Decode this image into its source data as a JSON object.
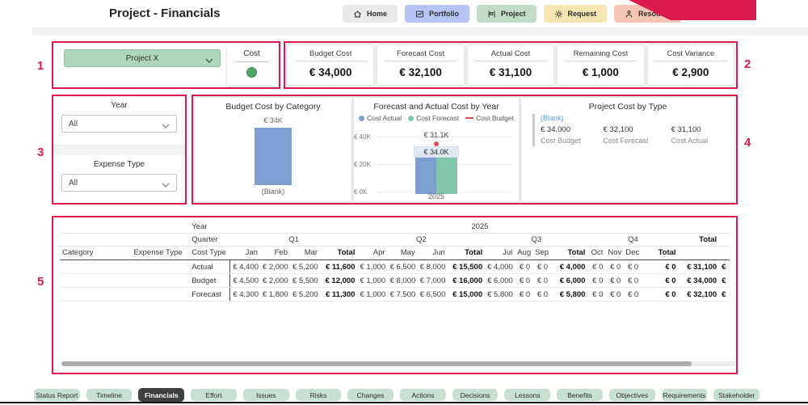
{
  "header": {
    "title": "Project - Financials",
    "nav": [
      {
        "label": "Home",
        "icon": "home-icon",
        "bg": "#e9e9e9"
      },
      {
        "label": "Portfolio",
        "icon": "portfolio-icon",
        "bg": "#b5c4f4"
      },
      {
        "label": "Project",
        "icon": "project-icon",
        "bg": "#c2dcca"
      },
      {
        "label": "Request",
        "icon": "request-icon",
        "bg": "#f6e5b2"
      },
      {
        "label": "Resource",
        "icon": "resource-icon",
        "bg": "#f6c6b4"
      }
    ],
    "ribbon_color": "#d81a4e"
  },
  "annotations": [
    "1",
    "2",
    "3",
    "4",
    "5"
  ],
  "filters": {
    "project": {
      "value": "Project X"
    },
    "cost": {
      "label": "Cost",
      "state": "on"
    },
    "year": {
      "label": "Year",
      "value": "All"
    },
    "expense": {
      "label": "Expense Type",
      "value": "All"
    }
  },
  "kpis": [
    {
      "label": "Budget Cost",
      "value": "€ 34,000"
    },
    {
      "label": "Forecast Cost",
      "value": "€ 32,100"
    },
    {
      "label": "Actual Cost",
      "value": "€ 31,100"
    },
    {
      "label": "Remaining Cost",
      "value": "€ 1,000"
    },
    {
      "label": "Cost Variance",
      "value": "€ 2,900"
    }
  ],
  "chart_data": [
    {
      "type": "bar",
      "title": "Budget Cost by Category",
      "categories": [
        "(Blank)"
      ],
      "values": [
        34000
      ],
      "data_label": "€ 34K",
      "bar_color": "#7d9fd2"
    },
    {
      "type": "bar",
      "title": "Forecast and Actual Cost by Year",
      "x": [
        "2025"
      ],
      "series": [
        {
          "name": "Cost Actual",
          "values": [
            31100
          ],
          "color": "#7d9fd2",
          "marker": "dot"
        },
        {
          "name": "Cost Forecast",
          "values": [
            32100
          ],
          "color": "#82c7ac",
          "marker": "dot"
        },
        {
          "name": "Cost Budget",
          "values": [
            34000
          ],
          "color": "#e05252",
          "marker": "line"
        }
      ],
      "ylim": [
        0,
        40000
      ],
      "yticks": [
        "€ 0K",
        "€ 20K",
        "€ 40K"
      ],
      "data_labels": {
        "actual": "€ 31.1K",
        "budget": "€ 34.0K"
      },
      "grid": "dotted",
      "legend_position": "top"
    },
    {
      "type": "table",
      "title": "Project Cost by Type",
      "group": "(Blank)",
      "items": [
        {
          "value": "€ 34,000",
          "label": "Cost Budget"
        },
        {
          "value": "€ 32,100",
          "label": "Cost Forecast"
        },
        {
          "value": "€ 31,100",
          "label": "Cost Actual"
        }
      ]
    }
  ],
  "table": {
    "year_label": "Year",
    "year_value": "2025",
    "quarter_label": "Quarter",
    "quarters": [
      "Q1",
      "Q2",
      "Q3",
      "Q4"
    ],
    "grand_total_label": "Total",
    "headers": [
      "Category",
      "Expense Type",
      "Cost Type"
    ],
    "month_cols": [
      "Jan",
      "Feb",
      "Mar",
      "Total",
      "Apr",
      "May",
      "Jun",
      "Total",
      "Jul",
      "Aug",
      "Sep",
      "Total",
      "Oct",
      "Nov",
      "Dec",
      "Total"
    ],
    "rows": [
      {
        "cost_type": "Actual",
        "values": [
          "€ 4,400",
          "€ 2,000",
          "€ 5,200",
          "€ 11,600",
          "€ 1,000",
          "€ 6,500",
          "€ 8,000",
          "€ 15,500",
          "€ 4,000",
          "€ 0",
          "€ 0",
          "€ 4,000",
          "€ 0",
          "€ 0",
          "€ 0",
          "€ 0"
        ],
        "total": "€ 31,100",
        "next": "€"
      },
      {
        "cost_type": "Budget",
        "values": [
          "€ 4,500",
          "€ 2,000",
          "€ 5,500",
          "€ 12,000",
          "€ 1,000",
          "€ 8,000",
          "€ 7,000",
          "€ 16,000",
          "€ 6,000",
          "€ 0",
          "€ 0",
          "€ 6,000",
          "€ 0",
          "€ 0",
          "€ 0",
          "€ 0"
        ],
        "total": "€ 34,000",
        "next": "€"
      },
      {
        "cost_type": "Forecast",
        "values": [
          "€ 4,300",
          "€ 1,800",
          "€ 5,200",
          "€ 11,300",
          "€ 1,000",
          "€ 7,500",
          "€ 6,500",
          "€ 15,000",
          "€ 5,800",
          "€ 0",
          "€ 0",
          "€ 5,800",
          "€ 0",
          "€ 0",
          "€ 0",
          "€ 0"
        ],
        "total": "€ 32,100",
        "next": "€"
      }
    ]
  },
  "footer_tabs": [
    {
      "label": "Status Report",
      "active": false
    },
    {
      "label": "Timeline",
      "active": false
    },
    {
      "label": "Financials",
      "active": true
    },
    {
      "label": "Effort",
      "active": false
    },
    {
      "label": "Issues",
      "active": false
    },
    {
      "label": "Risks",
      "active": false
    },
    {
      "label": "Changes",
      "active": false
    },
    {
      "label": "Actions",
      "active": false
    },
    {
      "label": "Decisions",
      "active": false
    },
    {
      "label": "Lessons",
      "active": false
    },
    {
      "label": "Benefits",
      "active": false
    },
    {
      "label": "Objectives",
      "active": false
    },
    {
      "label": "Requirements",
      "active": false
    },
    {
      "label": "Stakeholder",
      "active": false
    }
  ],
  "colors": {
    "annotation": "#d81a4e",
    "bar_blue": "#7d9fd2",
    "bar_green": "#82c7ac",
    "marker_red": "#e05252",
    "toggle_green": "#4ea564"
  }
}
